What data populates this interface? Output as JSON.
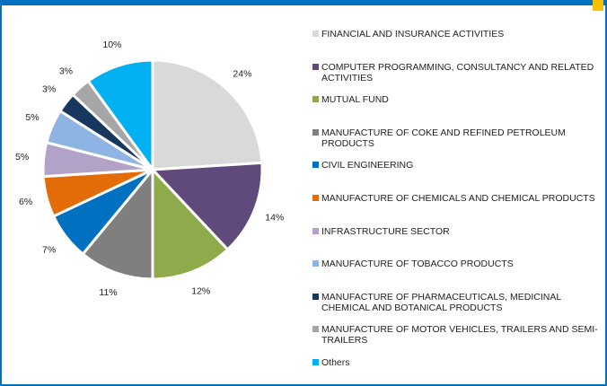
{
  "chart_data": {
    "type": "pie",
    "categories": [
      "FINANCIAL AND INSURANCE ACTIVITIES",
      "COMPUTER PROGRAMMING, CONSULTANCY AND RELATED ACTIVITIES",
      "MUTUAL FUND",
      "MANUFACTURE OF COKE AND REFINED PETROLEUM PRODUCTS",
      "CIVIL ENGINEERING",
      "MANUFACTURE OF CHEMICALS AND CHEMICAL PRODUCTS",
      "INFRASTRUCTURE SECTOR",
      "MANUFACTURE OF TOBACCO PRODUCTS",
      "MANUFACTURE OF PHARMACEUTICALS, MEDICINAL CHEMICAL AND BOTANICAL PRODUCTS",
      "MANUFACTURE OF MOTOR VEHICLES, TRAILERS AND SEMI-TRAILERS",
      "Others"
    ],
    "values": [
      24,
      14,
      12,
      11,
      7,
      6,
      5,
      5,
      3,
      3,
      10
    ],
    "value_labels": [
      "24%",
      "14%",
      "12%",
      "11%",
      "7%",
      "6%",
      "5%",
      "5%",
      "3%",
      "3%",
      "10%"
    ],
    "colors": [
      "#d9d9d9",
      "#604a7b",
      "#8eaa4b",
      "#7f7f7f",
      "#0070c0",
      "#e36c09",
      "#b3a2c7",
      "#8eb4e3",
      "#17375e",
      "#a6a6a6",
      "#00b0f0"
    ],
    "legend": "right"
  }
}
